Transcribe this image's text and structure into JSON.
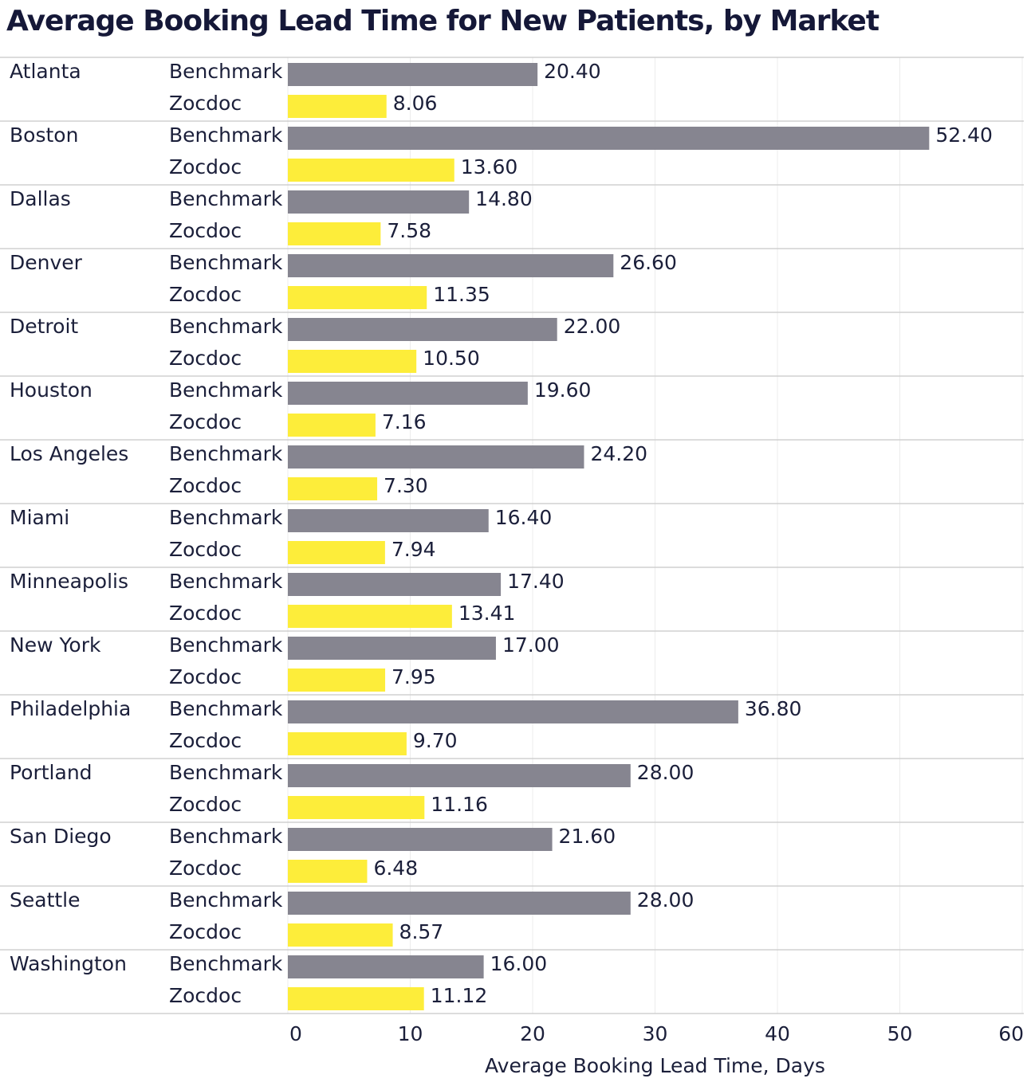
{
  "chart_data": {
    "type": "bar",
    "title": "Average Booking Lead Time for New Patients, by Market",
    "xlabel": "Average Booking Lead Time, Days",
    "ylabel": "",
    "xlim": [
      0,
      60
    ],
    "xticks": [
      "0",
      "10",
      "20",
      "30",
      "40",
      "50",
      "60"
    ],
    "orientation": "horizontal",
    "grid": true,
    "categories": [
      "Atlanta",
      "Boston",
      "Dallas",
      "Denver",
      "Detroit",
      "Houston",
      "Los Angeles",
      "Miami",
      "Minneapolis",
      "New York",
      "Philadelphia",
      "Portland",
      "San Diego",
      "Seattle",
      "Washington"
    ],
    "series": [
      {
        "name": "Benchmark",
        "color": "#868590",
        "values": [
          20.4,
          52.4,
          14.8,
          26.6,
          22.0,
          19.6,
          24.2,
          16.4,
          17.4,
          17.0,
          36.8,
          28.0,
          21.6,
          28.0,
          16.0
        ],
        "labels": [
          "20.40",
          "52.40",
          "14.80",
          "26.60",
          "22.00",
          "19.60",
          "24.20",
          "16.40",
          "17.40",
          "17.00",
          "36.80",
          "28.00",
          "21.60",
          "28.00",
          "16.00"
        ]
      },
      {
        "name": "Zocdoc",
        "color": "#fded3a",
        "values": [
          8.06,
          13.6,
          7.58,
          11.35,
          10.5,
          7.16,
          7.3,
          7.94,
          13.41,
          7.95,
          9.7,
          11.16,
          6.48,
          8.57,
          11.12
        ],
        "labels": [
          "8.06",
          "13.60",
          "7.58",
          "11.35",
          "10.50",
          "7.16",
          "7.30",
          "7.94",
          "13.41",
          "7.95",
          "9.70",
          "11.16",
          "6.48",
          "8.57",
          "11.12"
        ]
      }
    ]
  }
}
